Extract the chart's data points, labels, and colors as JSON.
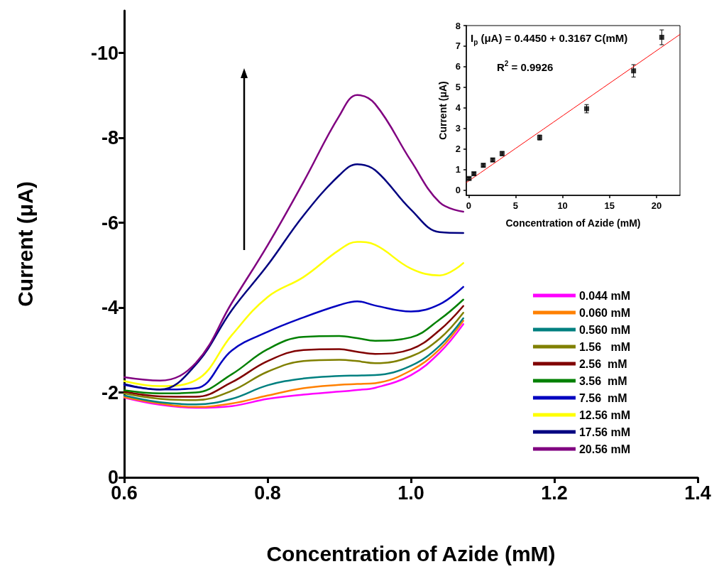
{
  "chart_data": [
    {
      "type": "line",
      "xlabel": "Concentration of Azide (mM)",
      "ylabel": "Current (μA)",
      "x": [
        0.6,
        0.65,
        0.7,
        0.75,
        0.8,
        0.85,
        0.9,
        0.925,
        0.95,
        1.0,
        1.04,
        1.073
      ],
      "series": [
        {
          "name": "0.044 mM",
          "color": "#ff00ff",
          "values": [
            -1.88,
            -1.71,
            -1.64,
            -1.68,
            -1.85,
            -1.95,
            -2.02,
            -2.06,
            -2.11,
            -2.41,
            -2.94,
            -3.61
          ]
        },
        {
          "name": "0.060 mM",
          "color": "#ff8000",
          "values": [
            -1.89,
            -1.74,
            -1.66,
            -1.74,
            -1.93,
            -2.1,
            -2.18,
            -2.2,
            -2.22,
            -2.52,
            -3.02,
            -3.69
          ]
        },
        {
          "name": "0.560 mM",
          "color": "#008080",
          "values": [
            -1.93,
            -1.77,
            -1.72,
            -1.85,
            -2.17,
            -2.33,
            -2.39,
            -2.4,
            -2.41,
            -2.63,
            -3.1,
            -3.75
          ]
        },
        {
          "name": "1.56   mM",
          "color": "#808000",
          "values": [
            -1.98,
            -1.85,
            -1.82,
            -2.04,
            -2.49,
            -2.74,
            -2.77,
            -2.74,
            -2.69,
            -2.85,
            -3.27,
            -3.88
          ]
        },
        {
          "name": "2.56  mM",
          "color": "#800000",
          "values": [
            -2.02,
            -1.91,
            -1.9,
            -2.24,
            -2.74,
            -3.0,
            -3.02,
            -2.96,
            -2.91,
            -3.02,
            -3.47,
            -4.04
          ]
        },
        {
          "name": "3.56  mM",
          "color": "#008000",
          "values": [
            -2.05,
            -1.98,
            -2.0,
            -2.43,
            -3.02,
            -3.31,
            -3.33,
            -3.28,
            -3.22,
            -3.3,
            -3.72,
            -4.19
          ]
        },
        {
          "name": "7.56  mM",
          "color": "#0000c0",
          "values": [
            -2.18,
            -2.07,
            -2.1,
            -2.99,
            -3.43,
            -3.77,
            -4.06,
            -4.15,
            -4.05,
            -3.91,
            -4.08,
            -4.49
          ]
        },
        {
          "name": "12.56 mM",
          "color": "#ffff00",
          "values": [
            -2.27,
            -2.15,
            -2.29,
            -3.35,
            -4.25,
            -4.72,
            -5.36,
            -5.55,
            -5.48,
            -4.92,
            -4.76,
            -5.05
          ]
        },
        {
          "name": "17.56 mM",
          "color": "#000080",
          "values": [
            -2.2,
            -2.07,
            -2.66,
            -3.94,
            -5.0,
            -6.17,
            -7.12,
            -7.38,
            -7.24,
            -6.31,
            -5.78,
            -5.76
          ]
        },
        {
          "name": "20.56 mM",
          "color": "#800080",
          "values": [
            -2.36,
            -2.28,
            -2.7,
            -4.11,
            -5.47,
            -6.96,
            -8.52,
            -9.01,
            -8.8,
            -7.46,
            -6.48,
            -6.26
          ]
        }
      ],
      "xlim": [
        0.6,
        1.4
      ],
      "xticks": [
        0.6,
        0.8,
        {
          "value": 1,
          "label": "1.0"
        },
        1.2,
        1.4
      ],
      "ylim": [
        0,
        -11
      ],
      "yticks": [
        0,
        -2,
        -4,
        -6,
        -8,
        -10
      ],
      "grid": false,
      "legend": "bottom right",
      "marker": "none",
      "line_style": "solid"
    },
    {
      "type": "scatter",
      "xlabel": "Concentration of Azide (mM)",
      "ylabel": "Current (μA)",
      "annotations": [
        "I$_{p}$ (μA) = 0.4450 + 0.3167 C(mM)",
        "R$^{2}$ = 0.9926"
      ],
      "series": [
        {
          "color": "#000000",
          "x": [
            0.044,
            0.56,
            1.56,
            2.56,
            3.56,
            7.56,
            12.56,
            17.56,
            20.56
          ],
          "values": [
            0.57,
            0.8,
            1.21,
            1.47,
            1.78,
            2.56,
            3.96,
            5.8,
            7.43
          ],
          "errors": [
            0.06,
            0.06,
            0.08,
            0.08,
            0.1,
            0.12,
            0.2,
            0.3,
            0.36
          ]
        },
        {
          "type": "line",
          "color": "#ff0000",
          "marker": "none",
          "x": [
            -0.25,
            22.5
          ],
          "values": [
            0.37,
            7.57
          ]
        }
      ],
      "xlim": [
        -0.25,
        22.5
      ],
      "xticks": [
        0,
        5,
        10,
        15,
        20
      ],
      "ylim": [
        -0.25,
        8
      ],
      "yticks": [
        0,
        1,
        2,
        3,
        4,
        5,
        6,
        7,
        8
      ],
      "grid": false,
      "legend": false,
      "marker": "square"
    }
  ]
}
